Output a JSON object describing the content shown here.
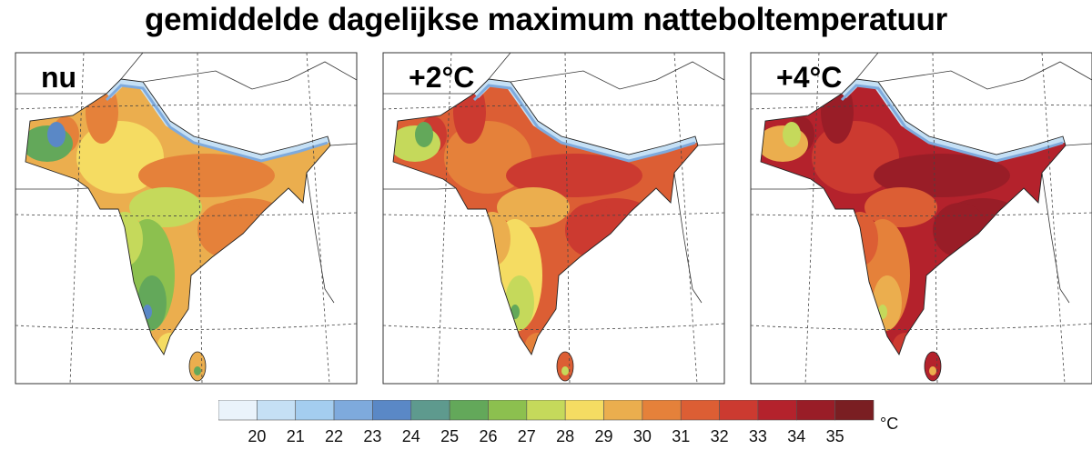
{
  "title": "gemiddelde dagelijkse maximum natteboltemperatuur",
  "panels": [
    {
      "label": "nu"
    },
    {
      "label": "+2°C"
    },
    {
      "label": "+4°C"
    }
  ],
  "chart_data": {
    "type": "heatmap",
    "title": "gemiddelde dagelijkse maximum natteboltemperatuur",
    "panels": [
      "nu",
      "+2°C",
      "+4°C"
    ],
    "colorbar": {
      "unit": "°C",
      "ticks": [
        "20",
        "21",
        "22",
        "23",
        "24",
        "25",
        "26",
        "27",
        "28",
        "29",
        "30",
        "31",
        "32",
        "33",
        "34",
        "35"
      ],
      "range": [
        19,
        36
      ],
      "colors": [
        "#eaf3fb",
        "#c5e0f5",
        "#a4cdef",
        "#7eaadd",
        "#5a88c6",
        "#5e9a8e",
        "#63a85a",
        "#8cc04f",
        "#c5d95b",
        "#f5dc62",
        "#ebae4e",
        "#e5813a",
        "#dc5e34",
        "#cc3a30",
        "#b4222c",
        "#991d27",
        "#7a1e22"
      ]
    }
  }
}
